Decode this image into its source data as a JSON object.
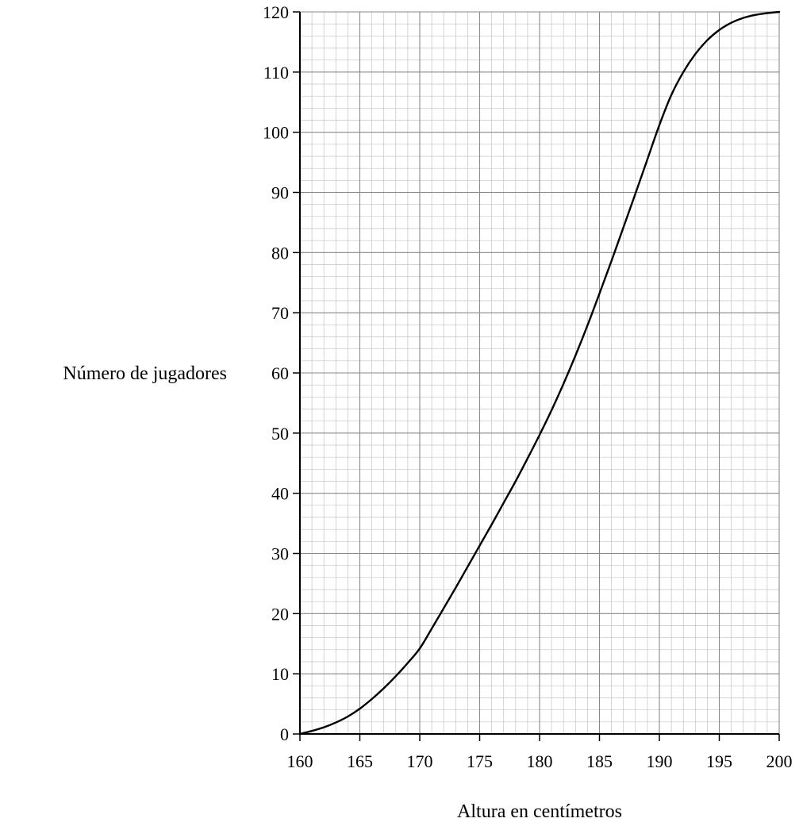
{
  "chart_data": {
    "type": "line",
    "title": "",
    "xlabel": "Altura en centímetros",
    "ylabel": "Número de jugadores",
    "xlim": [
      160,
      200
    ],
    "ylim": [
      0,
      120
    ],
    "x_ticks": [
      160,
      165,
      170,
      175,
      180,
      185,
      190,
      195,
      200
    ],
    "y_ticks": [
      0,
      10,
      20,
      30,
      40,
      50,
      60,
      70,
      80,
      90,
      100,
      110,
      120
    ],
    "grid": {
      "major_x_step": 5,
      "major_y_step": 10,
      "minor_x_step": 1,
      "minor_y_step": 2
    },
    "series": [
      {
        "x": [
          160,
          161,
          162,
          163,
          164,
          165,
          166,
          167,
          168,
          169,
          170,
          171,
          172,
          173,
          174,
          175,
          176,
          177,
          178,
          179,
          180,
          181,
          182,
          183,
          184,
          185,
          186,
          187,
          188,
          189,
          190,
          191,
          192,
          193,
          194,
          195,
          196,
          197,
          198,
          199,
          200
        ],
        "y": [
          0,
          0.5,
          1.1,
          1.9,
          2.9,
          4.2,
          5.8,
          7.6,
          9.6,
          11.8,
          14.2,
          17.5,
          20.9,
          24.3,
          27.8,
          31.3,
          34.8,
          38.4,
          42.0,
          45.8,
          49.7,
          53.8,
          58.2,
          62.9,
          67.9,
          73.2,
          78.6,
          84.2,
          89.8,
          95.5,
          101.2,
          106.2,
          110.0,
          113.0,
          115.3,
          117.0,
          118.2,
          119.0,
          119.5,
          119.8,
          120
        ]
      }
    ]
  }
}
